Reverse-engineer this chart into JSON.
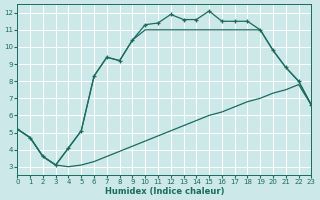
{
  "xlabel": "Humidex (Indice chaleur)",
  "bg_color": "#cce8e8",
  "grid_color": "#ffffff",
  "line_color": "#1a6b60",
  "xlim": [
    0,
    23
  ],
  "ylim": [
    2.5,
    12.5
  ],
  "xticks": [
    0,
    1,
    2,
    3,
    4,
    5,
    6,
    7,
    8,
    9,
    10,
    11,
    12,
    13,
    14,
    15,
    16,
    17,
    18,
    19,
    20,
    21,
    22,
    23
  ],
  "yticks": [
    3,
    4,
    5,
    6,
    7,
    8,
    9,
    10,
    11,
    12
  ],
  "line_marked_x": [
    0,
    1,
    2,
    3,
    4,
    5,
    6,
    7,
    8,
    9,
    10,
    11,
    12,
    13,
    14,
    15,
    16,
    17,
    18,
    19,
    20,
    21,
    22,
    23
  ],
  "line_marked_y": [
    5.2,
    4.7,
    3.6,
    3.1,
    4.1,
    5.1,
    8.3,
    9.4,
    9.2,
    10.4,
    11.3,
    11.4,
    11.9,
    11.6,
    11.6,
    12.1,
    11.5,
    11.5,
    11.5,
    11.0,
    9.8,
    8.8,
    8.0,
    6.6
  ],
  "line_diag_x": [
    0,
    1,
    2,
    3,
    4,
    5,
    6,
    7,
    8,
    9,
    10,
    11,
    12,
    13,
    14,
    15,
    16,
    17,
    18,
    19,
    20,
    21,
    22,
    23
  ],
  "line_diag_y": [
    5.2,
    4.7,
    3.6,
    3.1,
    3.0,
    3.1,
    3.3,
    3.6,
    3.9,
    4.2,
    4.5,
    4.8,
    5.1,
    5.4,
    5.7,
    6.0,
    6.2,
    6.5,
    6.8,
    7.0,
    7.3,
    7.5,
    7.8,
    6.6
  ],
  "line_tri_x": [
    0,
    1,
    2,
    3,
    4,
    5,
    6,
    7,
    8,
    9,
    10,
    19,
    20,
    21,
    22,
    23
  ],
  "line_tri_y": [
    5.2,
    4.7,
    3.6,
    3.1,
    4.1,
    5.1,
    8.3,
    9.4,
    9.2,
    10.4,
    11.0,
    11.0,
    9.8,
    8.8,
    8.0,
    6.6
  ],
  "linewidth": 0.9,
  "marker": "+",
  "marker_size": 3.5,
  "tick_fontsize": 5,
  "xlabel_fontsize": 6
}
